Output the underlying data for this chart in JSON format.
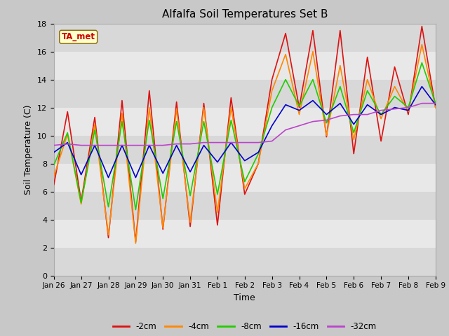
{
  "title": "Alfalfa Soil Temperatures Set B",
  "xlabel": "Time",
  "ylabel": "Soil Temperature (C)",
  "ylim": [
    0,
    18
  ],
  "annotation": "TA_met",
  "colors": {
    "-2cm": "#dd1111",
    "-4cm": "#ff8800",
    "-8cm": "#22cc00",
    "-16cm": "#0000cc",
    "-32cm": "#bb44cc"
  },
  "x_labels": [
    "Jan 26",
    "Jan 27",
    "Jan 28",
    "Jan 29",
    "Jan 30",
    "Jan 31",
    "Feb 1",
    "Feb 2",
    "Feb 3",
    "Feb 4",
    "Feb 5",
    "Feb 6",
    "Feb 7",
    "Feb 8",
    "Feb 9"
  ],
  "x_ticks": [
    0,
    1,
    2,
    3,
    4,
    5,
    6,
    7,
    8,
    9,
    10,
    11,
    12,
    13,
    14
  ],
  "series": {
    "-2cm": [
      6.5,
      11.7,
      5.3,
      11.3,
      2.7,
      12.5,
      2.4,
      13.2,
      3.3,
      12.4,
      3.5,
      12.3,
      3.6,
      12.7,
      5.8,
      8.0,
      14.0,
      17.3,
      12.0,
      17.5,
      9.9,
      17.5,
      8.7,
      15.6,
      9.6,
      14.9,
      11.5,
      17.8,
      12.0
    ],
    "-4cm": [
      7.1,
      10.1,
      5.1,
      10.8,
      2.9,
      11.6,
      2.3,
      12.0,
      3.4,
      11.9,
      3.8,
      12.0,
      4.5,
      12.0,
      6.2,
      8.0,
      13.2,
      15.8,
      11.5,
      16.0,
      10.0,
      15.0,
      9.7,
      14.0,
      11.2,
      13.5,
      11.7,
      16.5,
      12.0
    ],
    "-8cm": [
      7.9,
      10.2,
      5.2,
      10.4,
      4.9,
      11.0,
      4.7,
      11.1,
      5.5,
      11.0,
      5.7,
      11.0,
      5.8,
      11.1,
      6.7,
      8.7,
      12.0,
      14.0,
      12.1,
      14.0,
      10.9,
      13.5,
      10.2,
      13.2,
      11.5,
      12.8,
      12.0,
      15.2,
      12.3
    ],
    "-16cm": [
      8.8,
      9.5,
      7.2,
      9.3,
      7.0,
      9.3,
      7.0,
      9.3,
      7.3,
      9.3,
      7.4,
      9.3,
      8.1,
      9.5,
      8.2,
      8.8,
      10.7,
      12.2,
      11.8,
      12.5,
      11.5,
      12.3,
      10.8,
      12.2,
      11.5,
      12.0,
      11.8,
      13.5,
      12.2
    ],
    "-32cm": [
      9.3,
      9.4,
      9.3,
      9.3,
      9.3,
      9.3,
      9.3,
      9.3,
      9.3,
      9.4,
      9.4,
      9.5,
      9.5,
      9.5,
      9.5,
      9.5,
      9.6,
      10.4,
      10.7,
      11.0,
      11.1,
      11.4,
      11.5,
      11.5,
      11.8,
      11.9,
      12.0,
      12.3,
      12.3
    ]
  },
  "band_colors": [
    "#d8d8d8",
    "#e8e8e8"
  ],
  "band_edges": [
    0,
    2,
    4,
    6,
    8,
    10,
    12,
    14,
    16,
    18
  ]
}
